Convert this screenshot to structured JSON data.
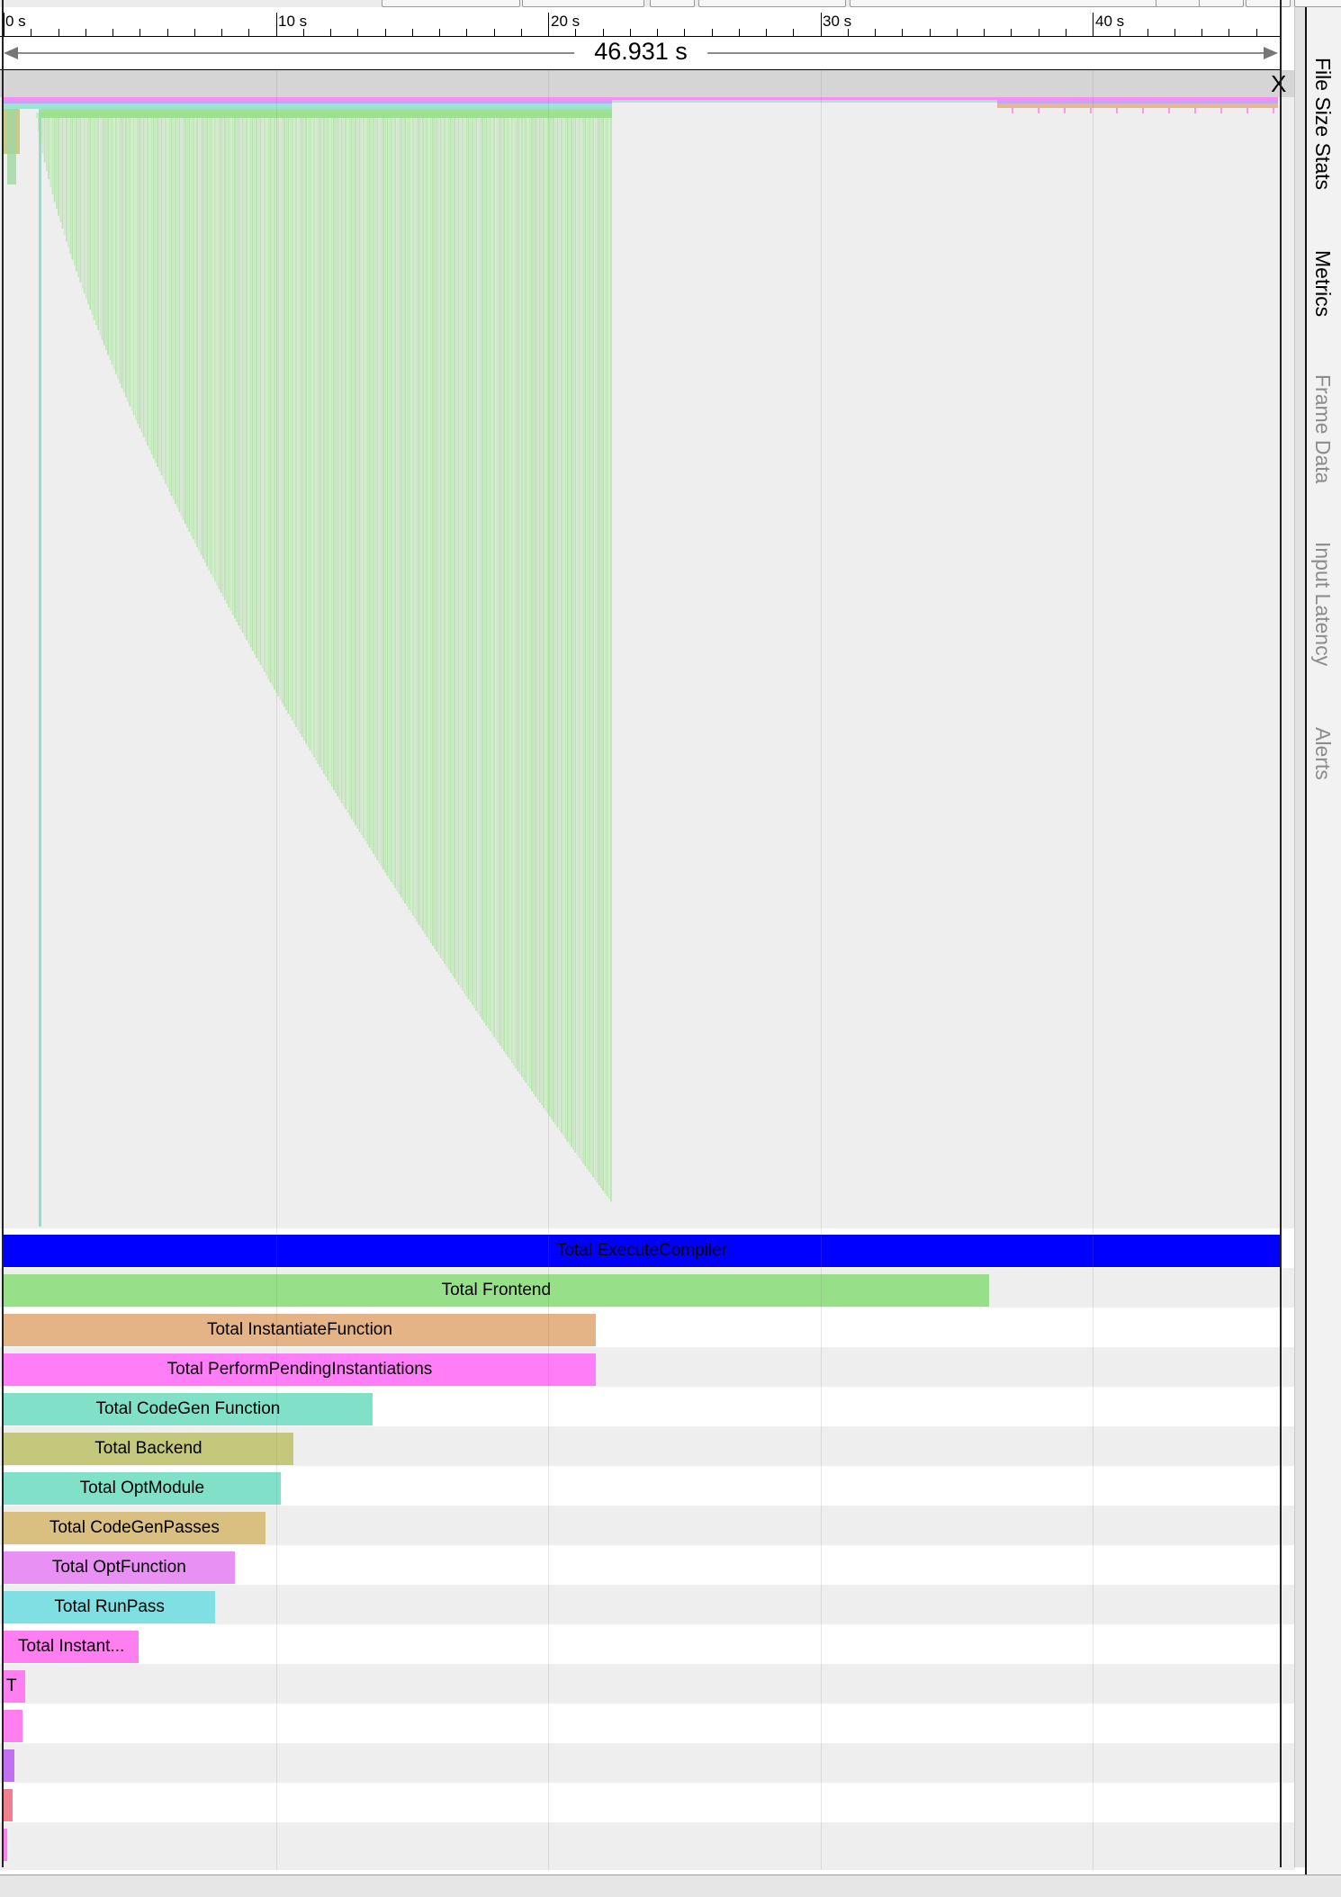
{
  "timeline": {
    "ticks": [
      "0 s",
      "10 s",
      "20 s",
      "30 s",
      "40 s"
    ],
    "duration_label": "46.931 s",
    "close_label": "X"
  },
  "side_tabs": [
    {
      "label": "File Size Stats",
      "active": true
    },
    {
      "label": "Metrics",
      "active": true
    },
    {
      "label": "Frame Data",
      "active": false
    },
    {
      "label": "Input Latency",
      "active": false
    },
    {
      "label": "Alerts",
      "active": false
    }
  ],
  "summary_rows": [
    {
      "label": "Total ExecuteCompiler",
      "fraction": 1.0,
      "color": "#0000ff",
      "text_color": "#000000"
    },
    {
      "label": "Total Frontend",
      "fraction": 0.772,
      "color": "#98df8a",
      "text_color": "#000000"
    },
    {
      "label": "Total InstantiateFunction",
      "fraction": 0.464,
      "color": "#e4b386",
      "text_color": "#000000"
    },
    {
      "label": "Total PerformPendingInstantiations",
      "fraction": 0.464,
      "color": "#ff7ef8",
      "text_color": "#000000"
    },
    {
      "label": "Total CodeGen Function",
      "fraction": 0.289,
      "color": "#80e0c8",
      "text_color": "#000000"
    },
    {
      "label": "Total Backend",
      "fraction": 0.227,
      "color": "#c4c87c",
      "text_color": "#000000"
    },
    {
      "label": "Total OptModule",
      "fraction": 0.217,
      "color": "#80e0c8",
      "text_color": "#000000"
    },
    {
      "label": "Total CodeGenPasses",
      "fraction": 0.205,
      "color": "#d9bf80",
      "text_color": "#000000"
    },
    {
      "label": "Total OptFunction",
      "fraction": 0.181,
      "color": "#e890f4",
      "text_color": "#000000"
    },
    {
      "label": "Total RunPass",
      "fraction": 0.166,
      "color": "#80dfe2",
      "text_color": "#000000"
    },
    {
      "label": "Total Instant...",
      "fraction": 0.106,
      "color": "#ff7ef0",
      "text_color": "#000000"
    },
    {
      "label": "T",
      "fraction": 0.015,
      "color": "#ff7ef0",
      "text_color": "#000000"
    },
    {
      "label": "",
      "fraction": 0.013,
      "color": "#ff7ef0",
      "text_color": "#000000"
    },
    {
      "label": "",
      "fraction": 0.006,
      "color": "#c070f0",
      "text_color": "#000000"
    },
    {
      "label": "",
      "fraction": 0.005,
      "color": "#f07f90",
      "text_color": "#000000"
    },
    {
      "label": "",
      "fraction": 0.0,
      "color": "#ff7ef0",
      "text_color": "#000000"
    }
  ],
  "colors": {
    "flame_green": "#98df8a",
    "flame_teal": "#7fe0c5",
    "top_purple": "#b9a0f0",
    "top_magenta": "#ff7ef8",
    "top_orange": "#e4b386"
  }
}
